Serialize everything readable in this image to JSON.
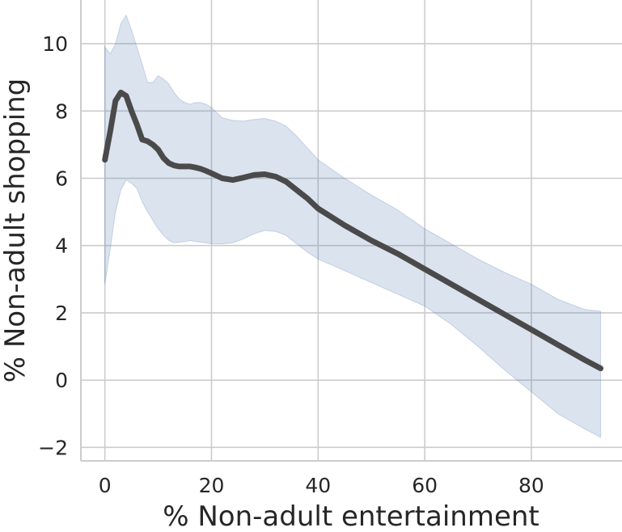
{
  "chart_data": {
    "type": "line",
    "title": "",
    "xlabel": "% Non-adult entertainment",
    "ylabel": "% Non-adult shopping",
    "xlim": [
      -4.5,
      97
    ],
    "ylim": [
      -2.4,
      11.3
    ],
    "xticks": [
      0,
      20,
      40,
      60,
      80
    ],
    "xtick_labels": [
      "0",
      "20",
      "40",
      "60",
      "80"
    ],
    "yticks": [
      -2,
      0,
      2,
      4,
      6,
      8,
      10
    ],
    "ytick_labels": [
      "−2",
      "0",
      "2",
      "4",
      "6",
      "8",
      "10"
    ],
    "grid": true,
    "legend": "none",
    "colors": {
      "line": "#4a4a4a",
      "band": "#4c72b0",
      "grid": "#cccccc",
      "axis": "#cccccc"
    },
    "series": [
      {
        "x": [
          0,
          1,
          2,
          3,
          4,
          5,
          6,
          7,
          8,
          9,
          10,
          11,
          12,
          13,
          14,
          15,
          16,
          17,
          18,
          19,
          20,
          22,
          24,
          26,
          28,
          30,
          32,
          34,
          36,
          38,
          40,
          45,
          50,
          55,
          60,
          65,
          70,
          75,
          80,
          85,
          90,
          93
        ],
        "y": [
          6.55,
          7.4,
          8.3,
          8.55,
          8.45,
          8.0,
          7.6,
          7.15,
          7.1,
          7.0,
          6.85,
          6.6,
          6.45,
          6.38,
          6.35,
          6.35,
          6.35,
          6.32,
          6.28,
          6.22,
          6.15,
          6.0,
          5.95,
          6.02,
          6.1,
          6.12,
          6.05,
          5.9,
          5.65,
          5.4,
          5.1,
          4.6,
          4.15,
          3.75,
          3.3,
          2.85,
          2.4,
          1.95,
          1.5,
          1.05,
          0.6,
          0.35
        ],
        "upper": [
          9.9,
          9.7,
          10.0,
          10.6,
          10.85,
          10.4,
          9.9,
          9.4,
          8.85,
          8.85,
          9.05,
          8.95,
          8.8,
          8.55,
          8.35,
          8.25,
          8.2,
          8.25,
          8.25,
          8.2,
          8.1,
          7.8,
          7.72,
          7.7,
          7.75,
          7.78,
          7.7,
          7.55,
          7.25,
          6.9,
          6.55,
          6.0,
          5.5,
          5.05,
          4.5,
          4.05,
          3.6,
          3.2,
          2.85,
          2.4,
          2.1,
          2.05
        ],
        "lower": [
          2.85,
          3.9,
          5.0,
          5.65,
          5.95,
          5.85,
          5.7,
          5.3,
          5.0,
          4.75,
          4.5,
          4.3,
          4.15,
          4.08,
          4.1,
          4.12,
          4.15,
          4.12,
          4.1,
          4.08,
          4.05,
          4.05,
          4.08,
          4.2,
          4.35,
          4.45,
          4.42,
          4.3,
          4.05,
          3.8,
          3.6,
          3.25,
          2.9,
          2.55,
          2.2,
          1.65,
          1.0,
          0.3,
          -0.35,
          -1.0,
          -1.45,
          -1.7
        ]
      }
    ]
  }
}
